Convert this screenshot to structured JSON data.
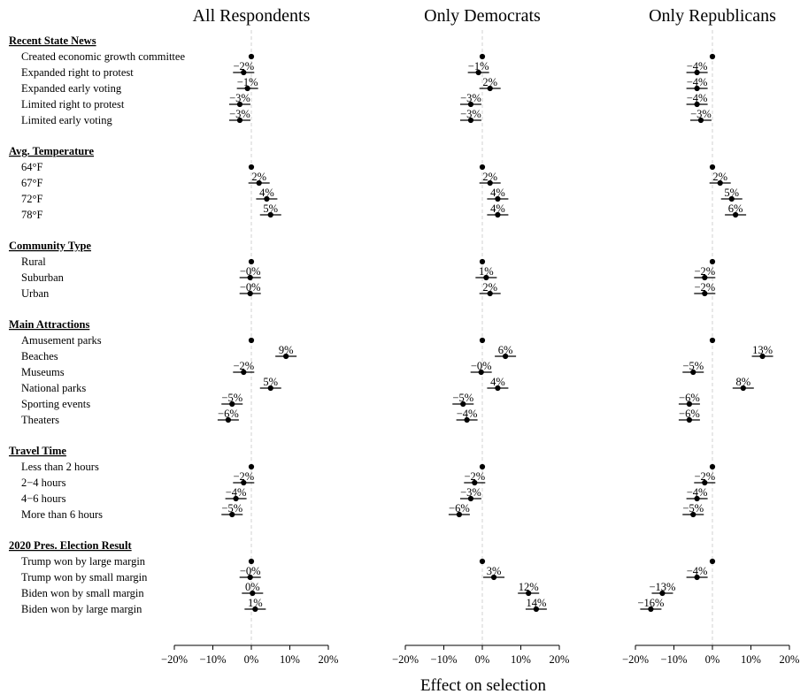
{
  "chart_data": {
    "type": "scatter",
    "xlabel": "Effect on selection",
    "xlim": [
      -20,
      20
    ],
    "xticks": [
      "−20%",
      "−10%",
      "0%",
      "10%",
      "20%"
    ],
    "reference_line": 0,
    "panels": [
      "All Respondents",
      "Only Democrats",
      "Only Republicans"
    ],
    "sections": [
      {
        "name": "Recent State News",
        "levels": [
          {
            "label": "Created economic growth committee",
            "values": [
              0,
              0,
              0
            ],
            "labels": [
              "",
              "",
              ""
            ]
          },
          {
            "label": "Expanded right to protest",
            "values": [
              -2,
              -1,
              -4
            ],
            "labels": [
              "−2%",
              "−1%",
              "−4%"
            ]
          },
          {
            "label": "Expanded early voting",
            "values": [
              -1,
              2,
              -4
            ],
            "labels": [
              "−1%",
              "2%",
              "−4%"
            ]
          },
          {
            "label": "Limited right to protest",
            "values": [
              -3,
              -3,
              -4
            ],
            "labels": [
              "−3%",
              "−3%",
              "−4%"
            ]
          },
          {
            "label": "Limited early voting",
            "values": [
              -3,
              -3,
              -3
            ],
            "labels": [
              "−3%",
              "−3%",
              "−3%"
            ]
          }
        ]
      },
      {
        "name": "Avg. Temperature",
        "levels": [
          {
            "label": "64°F",
            "values": [
              0,
              0,
              0
            ],
            "labels": [
              "",
              "",
              ""
            ]
          },
          {
            "label": "67°F",
            "values": [
              2,
              2,
              2
            ],
            "labels": [
              "2%",
              "2%",
              "2%"
            ]
          },
          {
            "label": "72°F",
            "values": [
              4,
              4,
              5
            ],
            "labels": [
              "4%",
              "4%",
              "5%"
            ]
          },
          {
            "label": "78°F",
            "values": [
              5,
              4,
              6
            ],
            "labels": [
              "5%",
              "4%",
              "6%"
            ]
          }
        ]
      },
      {
        "name": "Community Type",
        "levels": [
          {
            "label": "Rural",
            "values": [
              0,
              0,
              0
            ],
            "labels": [
              "",
              "",
              ""
            ]
          },
          {
            "label": "Suburban",
            "values": [
              -0.3,
              1,
              -2
            ],
            "labels": [
              "−0%",
              "1%",
              "−2%"
            ]
          },
          {
            "label": "Urban",
            "values": [
              -0.3,
              2,
              -2
            ],
            "labels": [
              "−0%",
              "2%",
              "−2%"
            ]
          }
        ]
      },
      {
        "name": "Main Attractions",
        "levels": [
          {
            "label": "Amusement parks",
            "values": [
              0,
              0,
              0
            ],
            "labels": [
              "",
              "",
              ""
            ]
          },
          {
            "label": "Beaches",
            "values": [
              9,
              6,
              13
            ],
            "labels": [
              "9%",
              "6%",
              "13%"
            ]
          },
          {
            "label": "Museums",
            "values": [
              -2,
              -0.3,
              -5
            ],
            "labels": [
              "−2%",
              "−0%",
              "−5%"
            ]
          },
          {
            "label": "National parks",
            "values": [
              5,
              4,
              8
            ],
            "labels": [
              "5%",
              "4%",
              "8%"
            ]
          },
          {
            "label": "Sporting events",
            "values": [
              -5,
              -5,
              -6
            ],
            "labels": [
              "−5%",
              "−5%",
              "−6%"
            ]
          },
          {
            "label": "Theaters",
            "values": [
              -6,
              -4,
              -6
            ],
            "labels": [
              "−6%",
              "−4%",
              "−6%"
            ]
          }
        ]
      },
      {
        "name": "Travel Time",
        "levels": [
          {
            "label": "Less than 2 hours",
            "values": [
              0,
              0,
              0
            ],
            "labels": [
              "",
              "",
              ""
            ]
          },
          {
            "label": "2−4 hours",
            "values": [
              -2,
              -2,
              -2
            ],
            "labels": [
              "−2%",
              "−2%",
              "−2%"
            ]
          },
          {
            "label": "4−6 hours",
            "values": [
              -4,
              -3,
              -4
            ],
            "labels": [
              "−4%",
              "−3%",
              "−4%"
            ]
          },
          {
            "label": "More than 6 hours",
            "values": [
              -5,
              -6,
              -5
            ],
            "labels": [
              "−5%",
              "−6%",
              "−5%"
            ]
          }
        ]
      },
      {
        "name": "2020 Pres. Election Result",
        "levels": [
          {
            "label": "Trump won by large margin",
            "values": [
              0,
              0,
              0
            ],
            "labels": [
              "",
              "",
              ""
            ]
          },
          {
            "label": "Trump won by small margin",
            "values": [
              -0.3,
              3,
              -4
            ],
            "labels": [
              "−0%",
              "3%",
              "−4%"
            ]
          },
          {
            "label": "Biden won by small margin",
            "values": [
              0.3,
              12,
              -13
            ],
            "labels": [
              "0%",
              "12%",
              "−13%"
            ]
          },
          {
            "label": "Biden won by large margin",
            "values": [
              1,
              14,
              -16
            ],
            "labels": [
              "1%",
              "14%",
              "−16%"
            ]
          }
        ]
      }
    ]
  }
}
